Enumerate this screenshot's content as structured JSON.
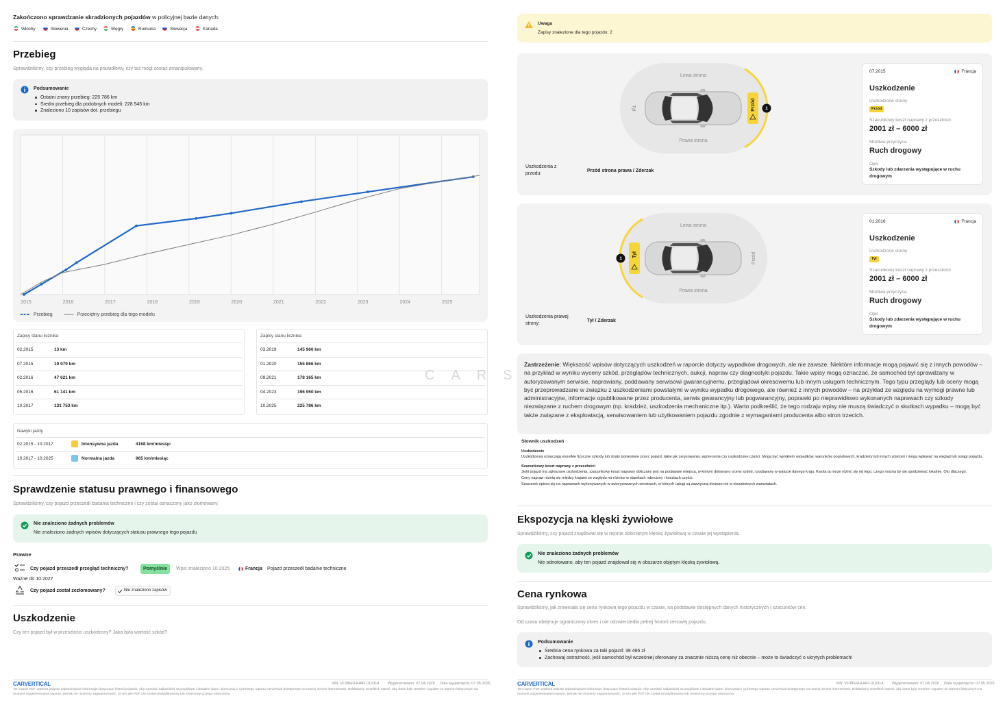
{
  "left": {
    "header": {
      "title_bold": "Zakończono sprawdzanie skradzionych pojazdów",
      "title_rest": " w policyjnej bazie danych:",
      "countries": [
        "Włochy",
        "Słowenia",
        "Czechy",
        "Węgry",
        "Rumunia",
        "Słowacja",
        "Kanada"
      ]
    },
    "mileage": {
      "title": "Przebieg",
      "subtitle": "Sprawdziliśmy, czy przebieg wygląda na prawidłowy, czy też mógł zostać zmanipulowany.",
      "summary": {
        "title": "Podsumowanie",
        "items": [
          "Ostatni znany przebieg: 225 786 km",
          "Średni przebieg dla podobnych modeli: 228 545 km",
          "Znaleziono 10 zapisów dot. przebiegu"
        ]
      },
      "chart": {
        "type": "line",
        "xlim": [
          2015,
          2025.9
        ],
        "xticks": [
          2015,
          2016,
          2017,
          2018,
          2019,
          2020,
          2021,
          2022,
          2023,
          2024,
          2025
        ],
        "ylim": [
          0,
          306000
        ],
        "grid": true,
        "series": [
          {
            "name": "Przebieg",
            "color": "#1f68c9",
            "x": [
              2015.08,
              2015.5,
              2016.08,
              2016.33,
              2017.75,
              2019.17,
              2020.0,
              2021.67,
              2023.25,
              2025.75
            ],
            "values": [
              13,
              19979,
              47621,
              61141,
              131753,
              145960,
              155866,
              178165,
              196950,
              225786
            ]
          },
          {
            "name": "Przeciętny przebieg dla tego modelu",
            "color": "#7a7a7a",
            "x": [
              2015.0,
              2015.5,
              2016.0,
              2017.0,
              2018.0,
              2019.0,
              2020.0,
              2021.0,
              2022.0,
              2023.0,
              2024.0,
              2025.0,
              2025.9
            ],
            "values": [
              0,
              24000,
              42000,
              58000,
              78000,
              96000,
              114000,
              135000,
              158000,
              182000,
              203000,
              217000,
              228545
            ]
          }
        ]
      },
      "records": {
        "title": "Zapisy stanu licznika",
        "left": [
          [
            "02.2015",
            "13 km"
          ],
          [
            "07.2015",
            "19 979 km"
          ],
          [
            "02.2016",
            "47 621 km"
          ],
          [
            "05.2016",
            "61 141 km"
          ],
          [
            "10.2017",
            "131 753 km"
          ]
        ],
        "right": [
          [
            "03.2019",
            "145 960 km"
          ],
          [
            "01.2020",
            "155 866 km"
          ],
          [
            "09.2021",
            "178 165 km"
          ],
          [
            "04.2023",
            "196 950 km"
          ],
          [
            "10.2025",
            "225 786 km"
          ]
        ]
      },
      "habits": {
        "title": "Nawyki jazdy",
        "rows": [
          {
            "period": "02.2015 - 10.2017",
            "label": "Intensywna jazda",
            "rate": "4168 km/miesiąc",
            "color": "#f4cf3a"
          },
          {
            "period": "10.2017 - 10.2025",
            "label": "Normalna jazda",
            "rate": "965 km/miesiąc",
            "color": "#7ec4ee"
          }
        ]
      }
    },
    "legal": {
      "title": "Sprawdzenie statusu prawnego i finansowego",
      "subtitle": "Sprawdziliśmy, czy pojazd przeszedł badania techniczne i czy został oznaczony jako złomowany.",
      "ok": {
        "title": "Nie znaleziono żadnych problemów",
        "text": "Nie znaleziono żadnych wpisów dotyczących statusu prawnego tego pojazdu"
      },
      "section": "Prawne",
      "q1": {
        "question": "Czy pojazd przeszedł przegląd techniczny?",
        "badge": "Pomyślnie",
        "record": "Wpis znaleziono 10.2025",
        "country": "Francja",
        "note": "Pojazd przeszedł badanie techniczne",
        "valid": "Ważne do 10.2027"
      },
      "q2": {
        "question": "Czy pojazd został zezłomowany?",
        "badge": "Nie znaleziono zapisów"
      }
    },
    "damage": {
      "title": "Uszkodzenie",
      "subtitle": "Czy ten pojazd był w przeszłości uszkodzony? Jaka była wartość szkód?"
    }
  },
  "right": {
    "warning": {
      "title": "Uwaga",
      "text": "Zapisy znalezione dla tego pojazdu: 2"
    },
    "cards": [
      {
        "left_label": "Lewa strona",
        "right_label": "Prawa strona",
        "opposite_label": "Tył",
        "zone": "Przód",
        "zone_side": "right",
        "number": "1",
        "caption": "Uszkodzenia z przodu:",
        "caption_value": "Przód strona prawa / Zderzak",
        "date": "07.2015",
        "country": "Francja",
        "title": "Uszkodzenie",
        "side_title": "Uszkodzone strony",
        "side_badge": "Przód",
        "cost_title": "Szacunkowy koszt naprawy z przeszłości",
        "cost": "2001 zł – 6000 zł",
        "cause_title": "Możliwa przyczyna",
        "cause": "Ruch drogowy",
        "desc_title": "Opis",
        "desc": "Szkody lub zdarzenia występujące w ruchu drogowym"
      },
      {
        "left_label": "Lewa strona",
        "right_label": "Prawa strona",
        "opposite_label": "Przód",
        "zone": "Tył",
        "zone_side": "left",
        "number": "1",
        "caption": "Uszkodzenia prawej strony:",
        "caption_value": "Tył / Zderzak",
        "date": "01.2016",
        "country": "Francja",
        "title": "Uszkodzenie",
        "side_title": "Uszkodzone strony",
        "side_badge": "Tył",
        "cost_title": "Szacunkowy koszt naprawy z przeszłości",
        "cost": "2001 zł – 6000 zł",
        "cause_title": "Możliwa przyczyna",
        "cause": "Ruch drogowy",
        "desc_title": "Opis",
        "desc": "Szkody lub zdarzenia występujące w ruchu drogowym"
      }
    ],
    "disclaimer": {
      "bold": "Zastrzeżenie",
      "text": ": Większość wpisów dotyczących uszkodzeń w raporcie dotyczy wypadków drogowych, ale nie zawsze. Niektóre informacje mogą pojawić się z innych powodów – na przykład w wyniku wyceny szkód, przeglądów technicznych, aukcji, napraw czy diagnostyki pojazdu. Takie wpisy mogą oznaczać, że samochód był sprawdzany w autoryzowanym serwisie, naprawiany, poddawany serwisowi gwarancyjnemu, przeglądowi okresowemu lub innym usługom technicznym. Tego typu przeglądy lub oceny mogą być przeprowadzane w związku z uszkodzeniami powstałymi w wyniku wypadku drogowego, ale również z innych powodów – na przykład ze względu na wymogi prawne lub administracyjne, informacje opublikowane przez producenta, serwis gwarancyjny lub pogwarancyjny, poprawki po nieprawidłowo wykonanych naprawach czy szkody niezwiązane z ruchem drogowym (np. kradzież, uszkodzenia mechaniczne itp.). Warto podkreślić, że tego rodzaju wpisy nie muszą świadczyć o skutkach wypadku – mogą być także związane z eksploatacją, serwisowaniem lub użytkowaniem pojazdu zgodnie z wymaganiami producenta albo stron trzecich."
    },
    "glossary": {
      "title": "Słownik uszkodzeń",
      "items": [
        {
          "term": "Uszkodzenie",
          "paragraphs": [
            "Uszkodzenia oznaczają wszelkie fizyczne szkody lub straty poniesione przez pojazd, takie jak zarysowania, wgniecenia czy uszkodzone części. Mogą być wynikiem wypadków, warunków pogodowych, kradzieży lub innych zdarzeń i mogą wpływać na wygląd lub osiągi pojazdu."
          ]
        },
        {
          "term": "Szacunkowy koszt naprawy z przeszłości",
          "paragraphs": [
            "Jeśli pojazd ma zgłoszone uszkodzenia, szacunkowy koszt naprawy obliczany jest na podstawie miejsca, w którym dokonano oceny szkód, i podawany w walucie danego kraju. Kwota ta może różnić się od tego, czego można by się spodziewać lokalnie. Oto dlaczego:",
            "Ceny napraw różnią się między krajami ze względu na różnice w stawkach robocizny i kosztach części.",
            "Szacunek opiera się na naprawach wykonywanych w autoryzowanych serwisach, w których usługi są zazwyczaj droższe niż w niezależnych warsztatach."
          ]
        }
      ]
    },
    "disaster": {
      "title": "Ekspozycja na klęski żywiołowe",
      "subtitle": "Sprawdziliśmy, czy pojazd znajdował się w rejonie dotkniętym klęską żywiołową w czasie jej wystąpienia.",
      "ok": {
        "title": "Nie znaleziono żadnych problemów",
        "text": "Nie odnotowano, aby ten pojazd znajdował się w obszarze objętym klęską żywiołową."
      }
    },
    "price": {
      "title": "Cena rynkowa",
      "subtitle": "Sprawdziliśmy, jak zmieniała się cena rynkowa tego pojazdu w czasie, na podstawie dostępnych danych historycznych i szacunków cen.",
      "note": "Od czasu obejmuje ograniczony okres i nie odzwierciedla pełnej historii cenowej pojazdu.",
      "summary": {
        "title": "Podsumowanie",
        "items": [
          "Średnia cena rynkowa za taki pojazd: 39 466 zł",
          "Zachowaj ostrożność, jeśli samochód był wcześniej oferowany za znacznie niższą cenę niż obecnie – może to świadczyć o ukrytych problemach!"
        ]
      }
    }
  },
  "footer": {
    "brand": "CARVERTICAL",
    "vin": "VIN: VF38ERHHAFL010314",
    "generated": "Wygenerowano: 07.04.2026",
    "expires": "Data wygaśnięcia: 07.05.2026",
    "text": "Ten raport PDF zawiera jedynie najważniejsze informacje dotyczące historii pojazdu. Aby uzyskać najbardziej szczegółowe i aktualne dane, skorzystaj z cyfrowego raportu carVertical dostępnego na naszej stronie internetowej. Dokładamy wszelkich starań, aby dane były rzetelne i zgodne ze stanem faktycznym na moment wygenerowania raportu, jednak nie możemy zagwarantować, że ten plik PDF nie został zmodyfikowany lub zmieniony po jego utworzeniu."
  },
  "watermark": "CARS"
}
